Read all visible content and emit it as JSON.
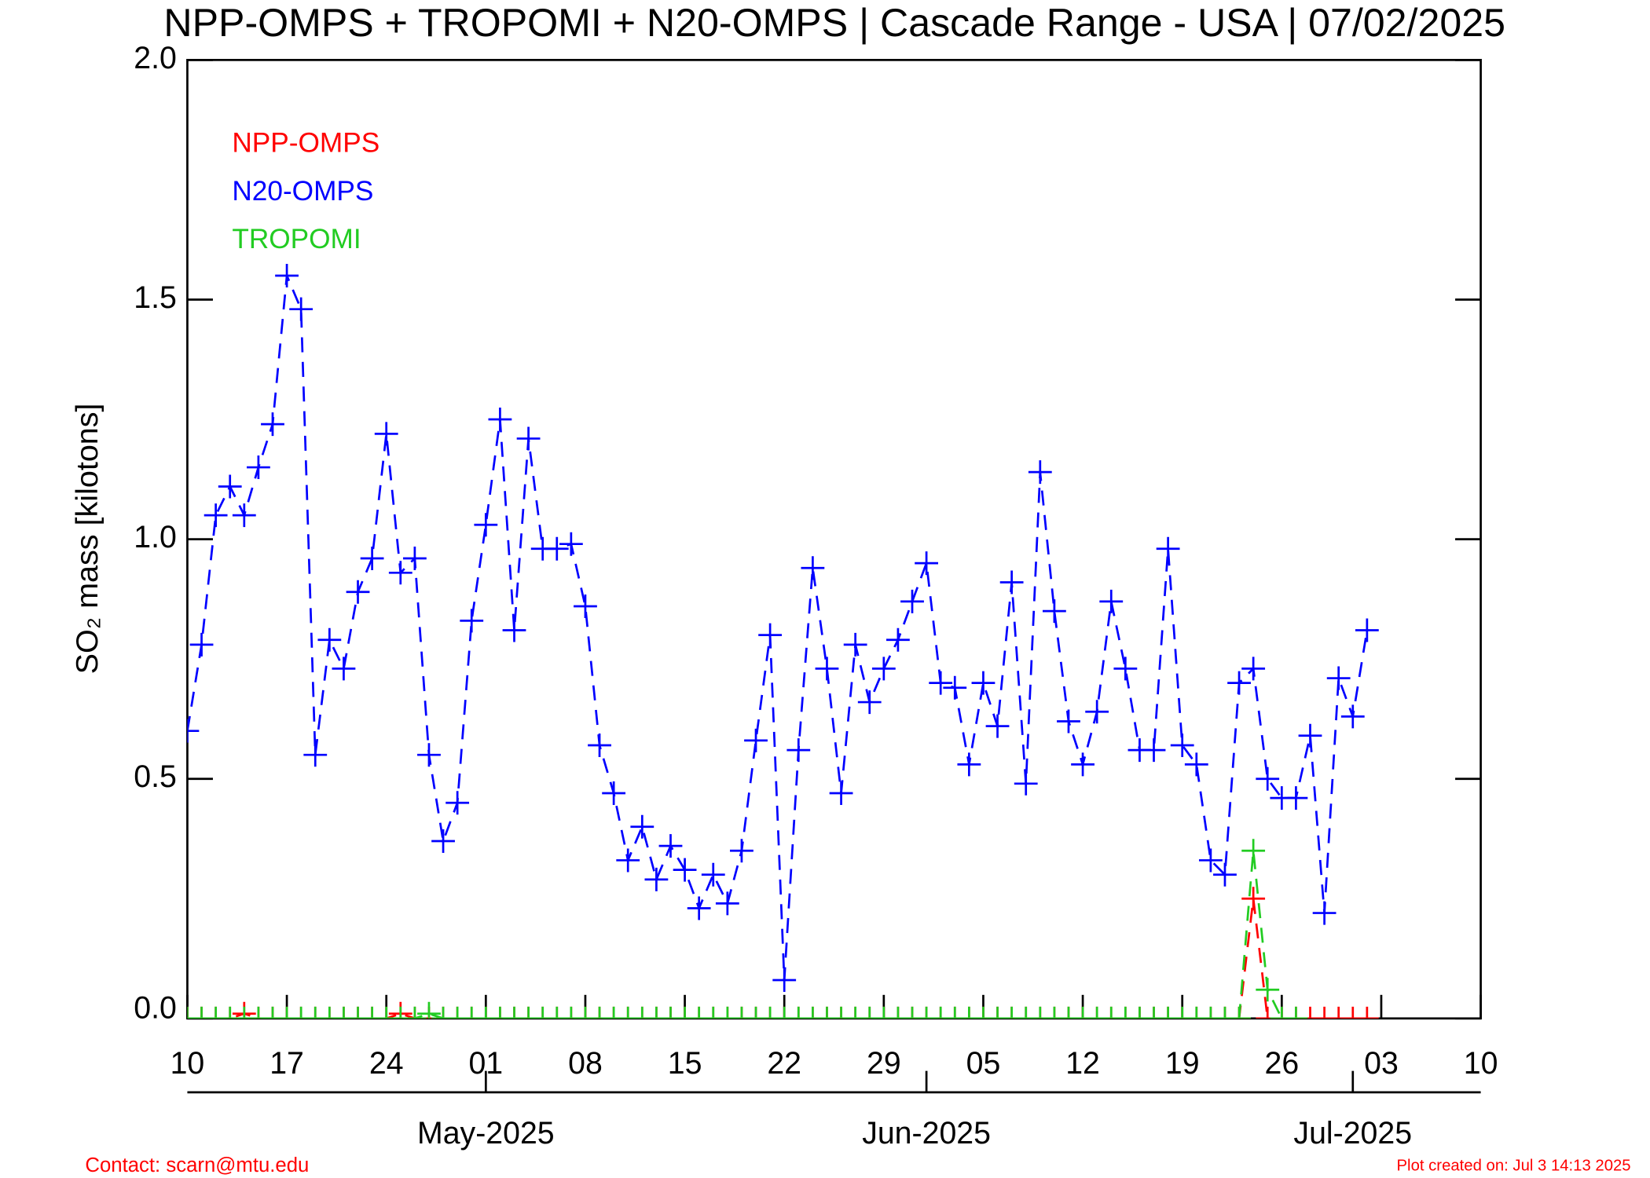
{
  "chart_data": {
    "type": "line",
    "title": "NPP-OMPS + TROPOMI + N20-OMPS | Cascade Range - USA | 07/02/2025",
    "y_label": "SO₂ mass [kilotons]",
    "contact": "Contact: scarn@mtu.edu",
    "created": "Plot created on: Jul  3 14:13 2025",
    "legend": "upper left",
    "ylim": [
      0,
      2.0
    ],
    "yticks": [
      {
        "value": 0,
        "label": "0.0"
      },
      {
        "value": 0.5,
        "label": "0.5"
      },
      {
        "value": 1.0,
        "label": "1.0"
      },
      {
        "value": 1.5,
        "label": "1.5"
      },
      {
        "value": 2.0,
        "label": "2.0"
      }
    ],
    "xlim": [
      "2025-04-10",
      "2025-07-10"
    ],
    "xticks": [
      {
        "value": "2025-04-10",
        "label": "10"
      },
      {
        "value": "2025-04-17",
        "label": "17"
      },
      {
        "value": "2025-04-24",
        "label": "24"
      },
      {
        "value": "2025-05-01",
        "label": "01"
      },
      {
        "value": "2025-05-08",
        "label": "08"
      },
      {
        "value": "2025-05-15",
        "label": "15"
      },
      {
        "value": "2025-05-22",
        "label": "22"
      },
      {
        "value": "2025-05-29",
        "label": "29"
      },
      {
        "value": "2025-06-05",
        "label": "05"
      },
      {
        "value": "2025-06-12",
        "label": "12"
      },
      {
        "value": "2025-06-19",
        "label": "19"
      },
      {
        "value": "2025-06-26",
        "label": "26"
      },
      {
        "value": "2025-07-03",
        "label": "03"
      },
      {
        "value": "2025-07-10",
        "label": "10"
      }
    ],
    "x2ticks": [
      {
        "value": "2025-05-01",
        "label": "May-2025"
      },
      {
        "value": "2025-06-01",
        "label": "Jun-2025"
      },
      {
        "value": "2025-07-01",
        "label": "Jul-2025"
      }
    ],
    "x": [
      "2025-04-10",
      "2025-04-11",
      "2025-04-12",
      "2025-04-13",
      "2025-04-14",
      "2025-04-15",
      "2025-04-16",
      "2025-04-17",
      "2025-04-18",
      "2025-04-19",
      "2025-04-20",
      "2025-04-21",
      "2025-04-22",
      "2025-04-23",
      "2025-04-24",
      "2025-04-25",
      "2025-04-26",
      "2025-04-27",
      "2025-04-28",
      "2025-04-29",
      "2025-04-30",
      "2025-05-01",
      "2025-05-02",
      "2025-05-03",
      "2025-05-04",
      "2025-05-05",
      "2025-05-06",
      "2025-05-07",
      "2025-05-08",
      "2025-05-09",
      "2025-05-10",
      "2025-05-11",
      "2025-05-12",
      "2025-05-13",
      "2025-05-14",
      "2025-05-15",
      "2025-05-16",
      "2025-05-17",
      "2025-05-18",
      "2025-05-19",
      "2025-05-20",
      "2025-05-21",
      "2025-05-22",
      "2025-05-23",
      "2025-05-24",
      "2025-05-25",
      "2025-05-26",
      "2025-05-27",
      "2025-05-28",
      "2025-05-29",
      "2025-05-30",
      "2025-05-31",
      "2025-06-01",
      "2025-06-02",
      "2025-06-03",
      "2025-06-04",
      "2025-06-05",
      "2025-06-06",
      "2025-06-07",
      "2025-06-08",
      "2025-06-09",
      "2025-06-10",
      "2025-06-11",
      "2025-06-12",
      "2025-06-13",
      "2025-06-14",
      "2025-06-15",
      "2025-06-16",
      "2025-06-17",
      "2025-06-18",
      "2025-06-19",
      "2025-06-20",
      "2025-06-21",
      "2025-06-22",
      "2025-06-23",
      "2025-06-24",
      "2025-06-25",
      "2025-06-26",
      "2025-06-27",
      "2025-06-28",
      "2025-06-29",
      "2025-06-30",
      "2025-07-01",
      "2025-07-02"
    ],
    "series": [
      {
        "name": "NPP-OMPS",
        "color": "#ff0000",
        "values": [
          0,
          0,
          0,
          0,
          0.01,
          0,
          0,
          0,
          0,
          0,
          0,
          0,
          0,
          0,
          0,
          0.01,
          0,
          0,
          0,
          0,
          0,
          0,
          0,
          0,
          0,
          0,
          0,
          0,
          0,
          0,
          0,
          0,
          0,
          0,
          0,
          0,
          0,
          0,
          0,
          0,
          0,
          0,
          0,
          0,
          0,
          0,
          0,
          0,
          0,
          0,
          0,
          0,
          0,
          0,
          0,
          0,
          0,
          0,
          0,
          0,
          0,
          0,
          0,
          0,
          0,
          0,
          0,
          0,
          0,
          0,
          0,
          0,
          0,
          0,
          0,
          0.25,
          0,
          0,
          0,
          0,
          0,
          0,
          0,
          0
        ]
      },
      {
        "name": "N20-OMPS",
        "color": "#0000ff",
        "values": [
          0.6,
          0.78,
          1.05,
          1.11,
          1.05,
          1.15,
          1.24,
          1.55,
          1.48,
          0.55,
          0.79,
          0.73,
          0.89,
          0.96,
          1.22,
          0.93,
          0.96,
          0.55,
          0.37,
          0.45,
          0.83,
          1.03,
          1.25,
          0.81,
          1.21,
          0.98,
          0.98,
          0.99,
          0.86,
          0.57,
          0.47,
          0.33,
          0.4,
          0.29,
          0.36,
          0.31,
          0.23,
          0.3,
          0.24,
          0.35,
          0.58,
          0.8,
          0.08,
          0.56,
          0.94,
          0.73,
          0.47,
          0.78,
          0.66,
          0.73,
          0.79,
          0.87,
          0.95,
          0.7,
          0.69,
          0.53,
          0.7,
          0.61,
          0.91,
          0.49,
          1.14,
          0.85,
          0.62,
          0.53,
          0.64,
          0.87,
          0.73,
          0.56,
          0.56,
          0.98,
          0.57,
          0.53,
          0.33,
          0.3,
          0.7,
          0.73,
          0.5,
          0.46,
          0.46,
          0.59,
          0.22,
          0.71,
          0.63,
          0.81
        ]
      },
      {
        "name": "TROPOMI",
        "color": "#22cc22",
        "values": [
          0,
          0,
          0,
          0,
          0,
          0,
          0,
          0,
          0,
          0,
          0,
          0,
          0,
          0,
          0,
          0,
          0,
          0.01,
          0,
          0,
          0,
          0,
          0,
          0,
          0,
          0,
          0,
          0,
          0,
          0,
          0,
          0,
          0,
          0,
          0,
          0,
          0,
          0,
          0,
          0,
          0,
          0,
          0,
          0,
          0,
          0,
          0,
          0,
          0,
          0,
          0,
          0,
          0,
          0,
          0,
          0,
          0,
          0,
          0,
          0,
          0,
          0,
          0,
          0,
          0,
          0,
          0,
          0,
          0,
          0,
          0,
          0,
          0,
          0,
          0,
          0.35,
          0.06,
          0,
          0,
          null,
          null,
          null,
          null,
          null
        ]
      }
    ]
  }
}
